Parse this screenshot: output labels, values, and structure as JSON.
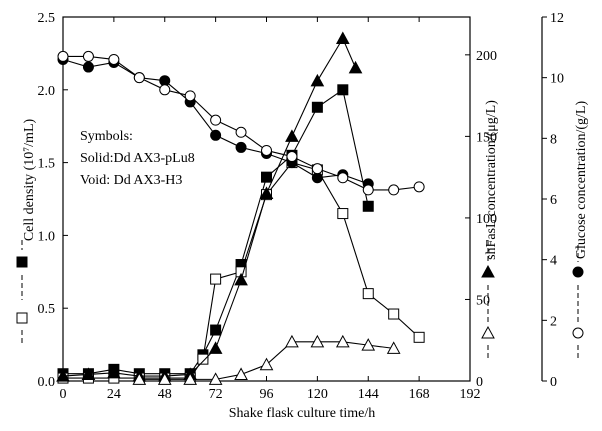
{
  "chart_data": {
    "type": "line",
    "title": "",
    "x": {
      "label": "Shake flask culture time/h",
      "ticks": [
        0,
        24,
        48,
        72,
        96,
        120,
        144,
        168,
        192
      ],
      "range": [
        0,
        192
      ]
    },
    "y_left": {
      "label": "Cell density (10⁷/mL)",
      "ticks": [
        "0.0",
        "0.5",
        "1.0",
        "1.5",
        "2.0",
        "2.5"
      ],
      "range": [
        0,
        2.5
      ]
    },
    "y_right1": {
      "label": "shFasL concentration/(μg/L)",
      "ticks": [
        "0",
        "50",
        "100",
        "150",
        "200"
      ],
      "range": [
        0,
        223.2
      ]
    },
    "y_right2": {
      "label": "Glucose concentration/(g/L)",
      "ticks": [
        "0",
        "2",
        "4",
        "6",
        "8",
        "10",
        "12"
      ],
      "range": [
        0,
        12
      ]
    },
    "legend_text": {
      "title": "Symbols:",
      "solid": "Solid:Dd AX3-pLu8",
      "void": "Void: Dd AX3-H3"
    },
    "series": [
      {
        "marker": "square-filled",
        "axis": "left",
        "x": [
          0,
          12,
          24,
          36,
          48,
          60,
          66,
          72,
          84,
          96,
          108,
          120,
          132,
          144
        ],
        "y": [
          0.05,
          0.05,
          0.08,
          0.05,
          0.05,
          0.05,
          0.18,
          0.35,
          0.8,
          1.4,
          1.55,
          1.88,
          2.0,
          1.2
        ]
      },
      {
        "marker": "square-open",
        "axis": "left",
        "x": [
          0,
          12,
          24,
          36,
          48,
          60,
          66,
          72,
          84,
          96,
          108,
          120,
          132,
          144,
          156,
          168
        ],
        "y": [
          0.02,
          0.02,
          0.02,
          0.02,
          0.02,
          0.02,
          0.15,
          0.7,
          0.75,
          1.28,
          1.5,
          1.45,
          1.15,
          0.6,
          0.46,
          0.3
        ]
      },
      {
        "marker": "triangle-filled",
        "axis": "right1",
        "x": [
          0,
          12,
          24,
          36,
          48,
          60,
          72,
          84,
          96,
          108,
          120,
          132,
          138
        ],
        "y": [
          3,
          4,
          5,
          3,
          3,
          4,
          20,
          62,
          115,
          150,
          184,
          210,
          192
        ]
      },
      {
        "marker": "triangle-open",
        "axis": "right1",
        "x": [
          36,
          48,
          60,
          72,
          84,
          96,
          108,
          120,
          132,
          144,
          156
        ],
        "y": [
          1,
          1,
          1,
          1,
          4,
          10,
          24,
          24,
          24,
          22,
          20
        ]
      },
      {
        "marker": "circle-filled",
        "axis": "right2",
        "x": [
          0,
          12,
          24,
          36,
          48,
          60,
          72,
          84,
          96,
          108,
          120,
          132,
          144
        ],
        "y": [
          10.6,
          10.35,
          10.5,
          10.0,
          9.9,
          9.2,
          8.1,
          7.7,
          7.5,
          7.2,
          6.7,
          6.8,
          6.5
        ]
      },
      {
        "marker": "circle-open",
        "axis": "right2",
        "x": [
          0,
          12,
          24,
          36,
          48,
          60,
          72,
          84,
          96,
          108,
          120,
          132,
          144,
          156,
          168
        ],
        "y": [
          10.7,
          10.7,
          10.6,
          10.0,
          9.6,
          9.4,
          8.6,
          8.2,
          7.6,
          7.4,
          7.0,
          6.7,
          6.3,
          6.3,
          6.4
        ]
      }
    ]
  }
}
